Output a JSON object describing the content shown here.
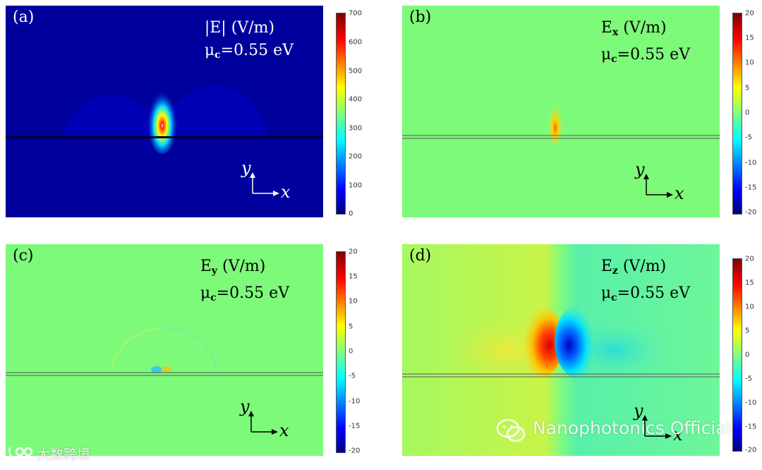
{
  "panels": [
    {
      "id": "a",
      "label": "(a)",
      "title_main": "|E| (V/m)",
      "title_sub": "",
      "mu_symbol": "μ",
      "mu_sub": "c",
      "mu_value": "=0.55 eV",
      "axis_x": "x",
      "axis_y": "y",
      "colorbar_ticks": [
        "700",
        "600",
        "500",
        "400",
        "300",
        "200",
        "100",
        "0"
      ]
    },
    {
      "id": "b",
      "label": "(b)",
      "title_main": "E",
      "title_sub": "x",
      "title_unit": " (V/m)",
      "mu_symbol": "μ",
      "mu_sub": "c",
      "mu_value": "=0.55 eV",
      "axis_x": "x",
      "axis_y": "y",
      "colorbar_ticks": [
        "20",
        "15",
        "10",
        "5",
        "0",
        "-5",
        "-10",
        "-15",
        "-20"
      ]
    },
    {
      "id": "c",
      "label": "(c)",
      "title_main": "E",
      "title_sub": "y",
      "title_unit": " (V/m)",
      "mu_symbol": "μ",
      "mu_sub": "c",
      "mu_value": "=0.55 eV",
      "axis_x": "x",
      "axis_y": "y",
      "colorbar_ticks": [
        "20",
        "15",
        "10",
        "5",
        "0",
        "-5",
        "-10",
        "-15",
        "-20"
      ]
    },
    {
      "id": "d",
      "label": "(d)",
      "title_main": "E",
      "title_sub": "z",
      "title_unit": " (V/m)",
      "mu_symbol": "μ",
      "mu_sub": "c",
      "mu_value": "=0.55 eV",
      "axis_x": "x",
      "axis_y": "y",
      "colorbar_ticks": [
        "20",
        "15",
        "10",
        "5",
        "0",
        "-5",
        "-10",
        "-15",
        "-20"
      ]
    }
  ],
  "watermark": {
    "text": "Nanophotonics Official",
    "icon": "wechat-icon"
  },
  "corner_logo": {
    "text": "大数跨境",
    "icon": "brand-logo-icon"
  },
  "colors": {
    "field_background": "#7dfa7a",
    "dark_background": "#0000a8",
    "hot": "#ff1a00",
    "cold": "#0010ff"
  }
}
